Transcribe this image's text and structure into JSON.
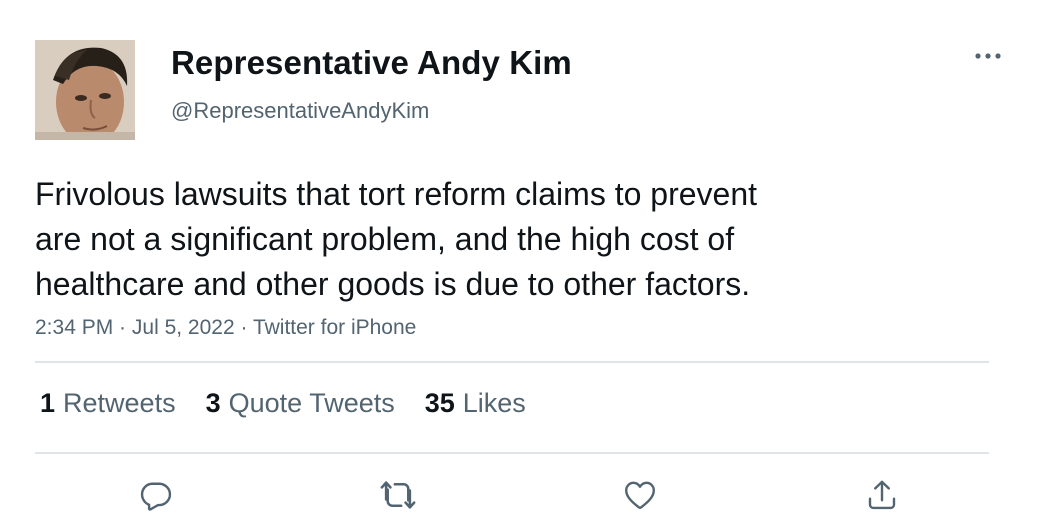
{
  "author": {
    "display_name": "Representative Andy Kim",
    "handle": "@RepresentativeAndyKim",
    "avatar_icon": "profile-photo"
  },
  "tweet": {
    "text": "Frivolous lawsuits that tort reform claims to prevent\nare not a significant problem, and the high cost of\nhealthcare and other goods is due to other factors.",
    "time": "2:34 PM",
    "separator": " · ",
    "date": "Jul 5, 2022",
    "source": "Twitter for iPhone"
  },
  "stats": [
    {
      "count": "1",
      "label": "Retweets"
    },
    {
      "count": "3",
      "label": "Quote Tweets"
    },
    {
      "count": "35",
      "label": "Likes"
    }
  ],
  "actions": {
    "reply_icon": "reply-icon",
    "retweet_icon": "retweet-icon",
    "like_icon": "heart-icon",
    "share_icon": "share-icon"
  },
  "colors": {
    "text_primary": "#0f1419",
    "text_secondary": "#536471",
    "divider": "#e1e4e7"
  }
}
